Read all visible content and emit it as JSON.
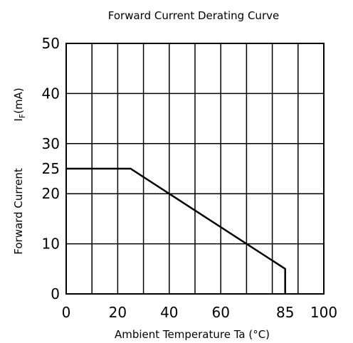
{
  "chart_data": {
    "type": "line",
    "title": "Forward Current Derating Curve",
    "xlabel": "Ambient Temperature Ta (°C)",
    "ylabel_main": "Forward Current",
    "ylabel_symbol": "I",
    "ylabel_subscript": "F",
    "ylabel_unit": "(mA)",
    "xlim": [
      0,
      100
    ],
    "ylim": [
      0,
      50
    ],
    "x_ticks": [
      0,
      20,
      40,
      60,
      85,
      100
    ],
    "y_ticks": [
      0,
      10,
      20,
      25,
      30,
      40,
      50
    ],
    "grid": true,
    "series": [
      {
        "x": [
          0,
          25,
          85,
          85
        ],
        "y": [
          25,
          25,
          5,
          0
        ]
      }
    ]
  }
}
